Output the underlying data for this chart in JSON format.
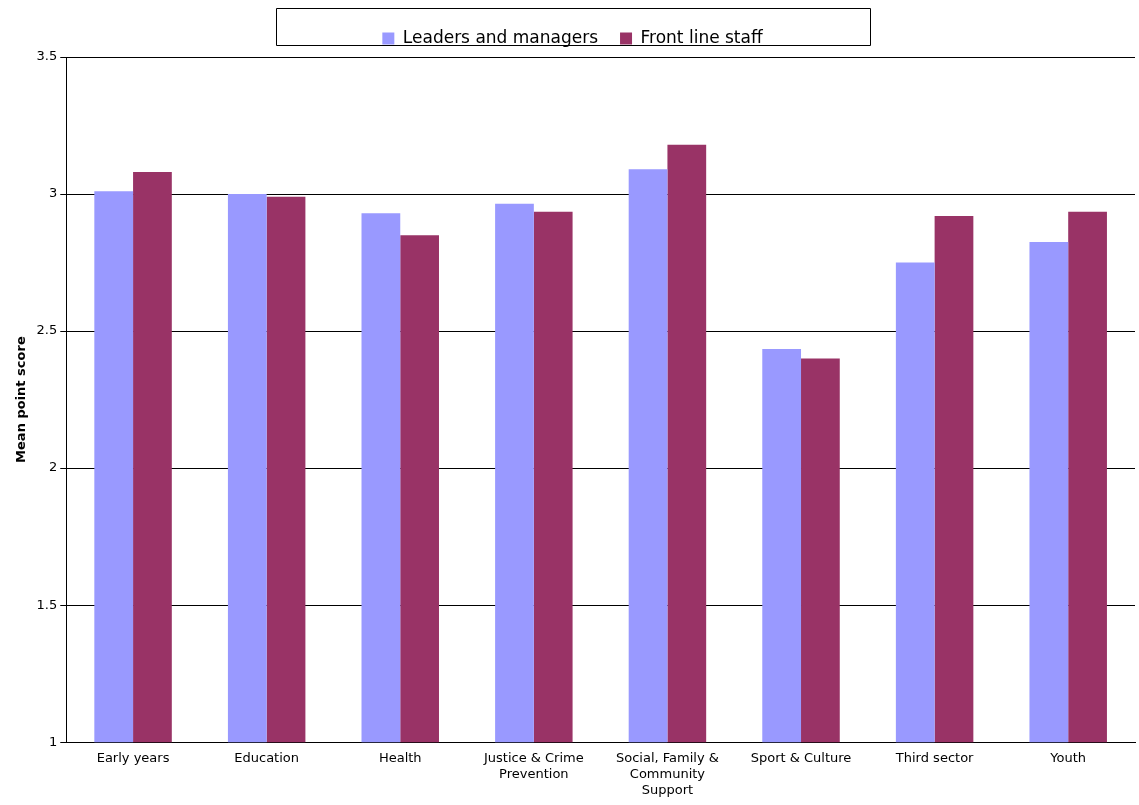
{
  "chart_data": {
    "type": "bar",
    "ylabel": "Mean point score",
    "categories": [
      "Early years",
      "Education",
      "Health",
      "Justice & Crime Prevention",
      "Social, Family & Community Support",
      "Sport & Culture",
      "Third sector",
      "Youth"
    ],
    "series": [
      {
        "name": "Leaders and managers",
        "color": "#9999ff",
        "values": [
          3.01,
          3.0,
          2.93,
          2.965,
          3.09,
          2.435,
          2.75,
          2.825
        ]
      },
      {
        "name": "Front line staff",
        "color": "#993366",
        "values": [
          3.08,
          2.99,
          2.85,
          2.935,
          3.18,
          2.4,
          2.92,
          2.935
        ]
      }
    ],
    "ylim": [
      1,
      3.5
    ],
    "yticks": [
      1,
      1.5,
      2,
      2.5,
      3,
      3.5
    ],
    "grid": "y",
    "legend": "top"
  }
}
